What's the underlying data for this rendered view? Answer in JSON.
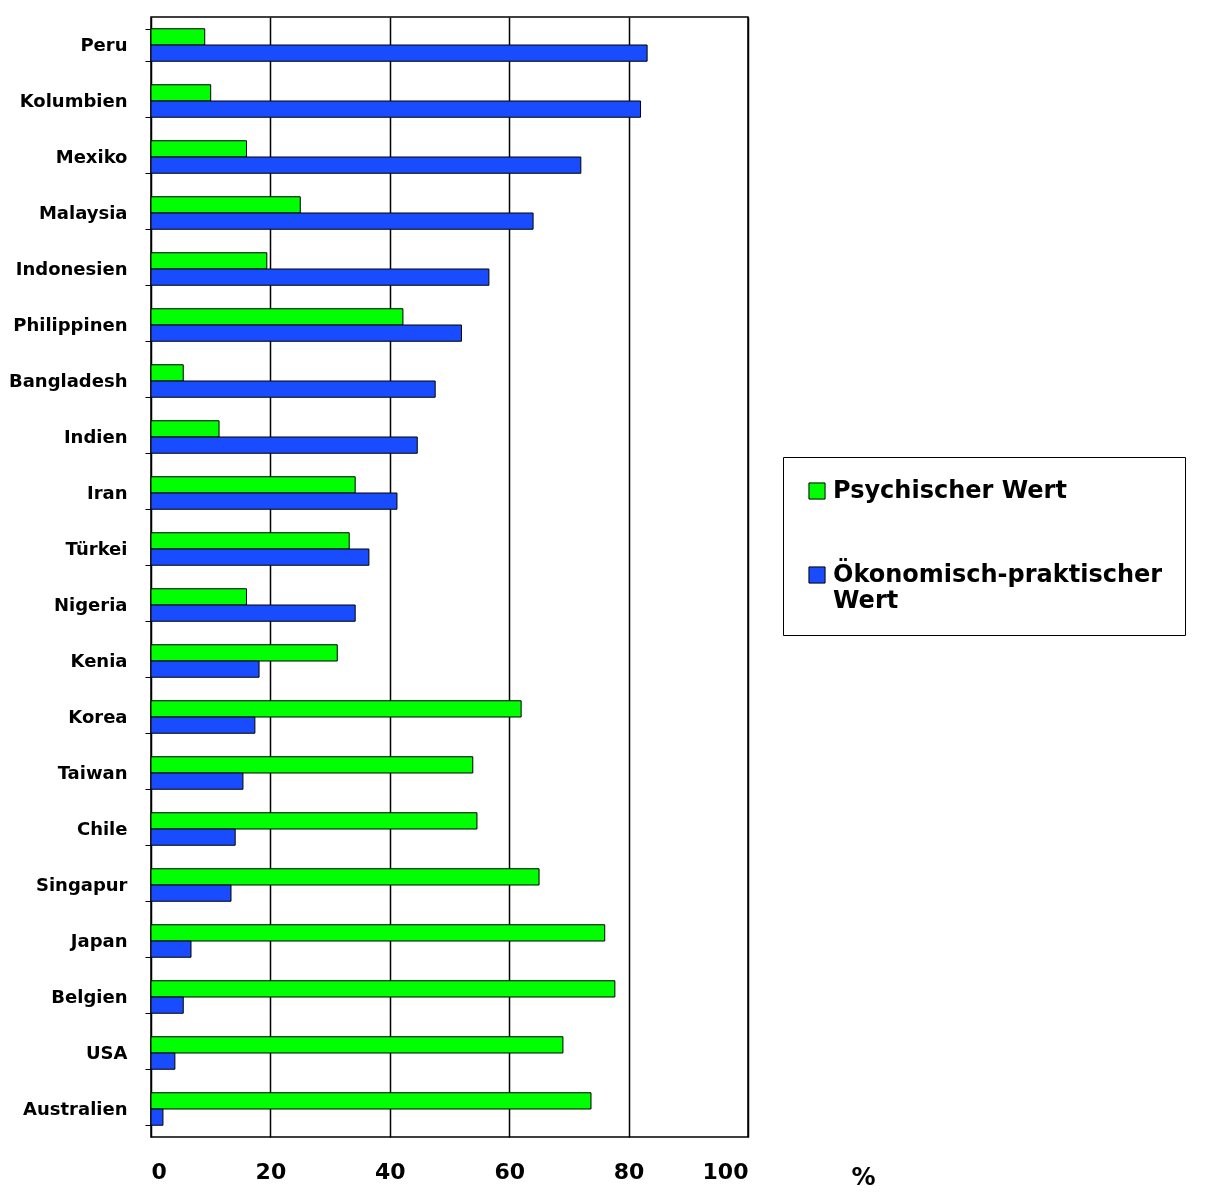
{
  "chart_data": {
    "type": "bar",
    "orientation": "horizontal",
    "xlabel": "%",
    "categories": [
      "Peru",
      "Kolumbien",
      "Mexiko",
      "Malaysia",
      "Indonesien",
      "Philippinen",
      "Bangladesh",
      "Indien",
      "Iran",
      "Türkei",
      "Nigeria",
      "Kenia",
      "Korea",
      "Taiwan",
      "Chile",
      "Singapur",
      "Japan",
      "Belgien",
      "USA",
      "Australien"
    ],
    "series": [
      {
        "name": "Psychischer Wert",
        "color": "#00ff00",
        "values": [
          9,
          10,
          16,
          25,
          19.4,
          42.2,
          5.4,
          11.4,
          34.2,
          33.2,
          16,
          31.2,
          62,
          53.9,
          54.6,
          65,
          76,
          77.7,
          69,
          73.7
        ]
      },
      {
        "name": "Ökonomisch-praktischer Wert",
        "color": "#1a4cff",
        "values": [
          83.1,
          82,
          72,
          64,
          56.6,
          52,
          47.6,
          44.6,
          41.2,
          36.5,
          34.2,
          18.1,
          17.4,
          15.4,
          14.1,
          13.4,
          6.7,
          5.4,
          4,
          2
        ]
      }
    ],
    "xlim": [
      0,
      100
    ],
    "xticks": [
      0,
      20,
      40,
      60,
      80,
      100
    ],
    "grid": "x",
    "legend": "right"
  }
}
